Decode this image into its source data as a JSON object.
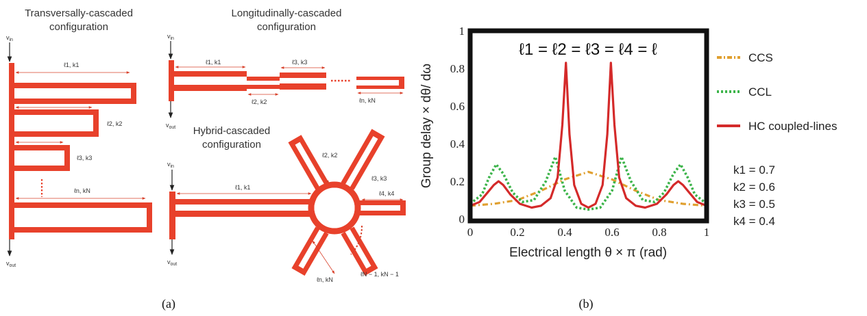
{
  "panel_a": {
    "transversal": {
      "title": [
        "Transversally-cascaded",
        "configuration"
      ],
      "v_in": "v",
      "v_in_sub": "in",
      "v_out": "v",
      "v_out_sub": "out",
      "labels": [
        "ℓ1, k1",
        "ℓ2, k2",
        "ℓ3, k3",
        "ℓn, kN"
      ]
    },
    "longitudinal": {
      "title": [
        "Longitudinally-cascaded",
        "configuration"
      ],
      "v_in": "v",
      "v_in_sub": "in",
      "v_out": "v",
      "v_out_sub": "out",
      "labels": [
        "ℓ1, k1",
        "ℓ2, k2",
        "ℓ3, k3",
        "ℓn, kN"
      ]
    },
    "hybrid": {
      "title": [
        "Hybrid-cascaded",
        "configuration"
      ],
      "v_in": "v",
      "v_in_sub": "in",
      "v_out": "v",
      "v_out_sub": "out",
      "labels": [
        "ℓ1, k1",
        "ℓ2, k2",
        "ℓ3, k3",
        "ℓ4, k4",
        "ℓn, kN",
        "ℓN − 1, kN − 1"
      ]
    },
    "caption": "(a)"
  },
  "panel_b": {
    "caption": "(b)",
    "equation": "ℓ1 = ℓ2 = ℓ3 = ℓ4 = ℓ",
    "xlabel": "Electrical length θ × π (rad)",
    "ylabel": "Group delay × dθ/ dω",
    "xticks": [
      "0",
      "0.2",
      "0.4",
      "0.6",
      "0.8",
      "1"
    ],
    "yticks": [
      "0",
      "0.2",
      "0.4",
      "0.6",
      "0.8",
      "1"
    ],
    "legend": [
      "CCS",
      "CCL",
      "HC coupled-lines"
    ],
    "k_values": [
      "k1 = 0.7",
      "k2 = 0.6",
      "k3 = 0.5",
      "k4 = 0.4"
    ]
  },
  "chart_data": {
    "type": "line",
    "xlabel": "Electrical length θ × π (rad)",
    "ylabel": "Group delay × dθ/ dω",
    "xlim": [
      0,
      1
    ],
    "ylim": [
      0,
      1
    ],
    "legend_position": "right-outside",
    "series": [
      {
        "name": "CCS",
        "color": "#e0a030",
        "style": "dash-dot",
        "x": [
          0,
          0.1,
          0.2,
          0.3,
          0.4,
          0.5,
          0.6,
          0.7,
          0.8,
          0.9,
          1
        ],
        "y": [
          0.07,
          0.08,
          0.1,
          0.15,
          0.21,
          0.25,
          0.21,
          0.15,
          0.1,
          0.08,
          0.07
        ]
      },
      {
        "name": "CCL",
        "color": "#3cb44a",
        "style": "dotted",
        "x": [
          0,
          0.05,
          0.08,
          0.11,
          0.14,
          0.18,
          0.22,
          0.27,
          0.32,
          0.36,
          0.4,
          0.45,
          0.5,
          0.55,
          0.6,
          0.64,
          0.68,
          0.73,
          0.78,
          0.82,
          0.86,
          0.89,
          0.92,
          0.95,
          1
        ],
        "y": [
          0.08,
          0.13,
          0.22,
          0.29,
          0.24,
          0.14,
          0.09,
          0.1,
          0.2,
          0.33,
          0.15,
          0.06,
          0.05,
          0.06,
          0.15,
          0.33,
          0.2,
          0.1,
          0.09,
          0.14,
          0.24,
          0.29,
          0.22,
          0.13,
          0.08
        ]
      },
      {
        "name": "HC coupled-lines",
        "color": "#d42a2a",
        "style": "solid",
        "x": [
          0,
          0.04,
          0.08,
          0.1,
          0.12,
          0.14,
          0.17,
          0.21,
          0.26,
          0.3,
          0.34,
          0.37,
          0.39,
          0.405,
          0.42,
          0.44,
          0.47,
          0.5,
          0.53,
          0.56,
          0.58,
          0.595,
          0.61,
          0.63,
          0.66,
          0.7,
          0.74,
          0.79,
          0.83,
          0.86,
          0.88,
          0.9,
          0.92,
          0.96,
          1
        ],
        "y": [
          0.07,
          0.09,
          0.15,
          0.18,
          0.2,
          0.18,
          0.13,
          0.08,
          0.06,
          0.07,
          0.11,
          0.22,
          0.5,
          0.83,
          0.45,
          0.18,
          0.08,
          0.06,
          0.08,
          0.18,
          0.45,
          0.83,
          0.5,
          0.22,
          0.11,
          0.07,
          0.06,
          0.08,
          0.13,
          0.18,
          0.2,
          0.18,
          0.15,
          0.09,
          0.07
        ]
      }
    ]
  }
}
